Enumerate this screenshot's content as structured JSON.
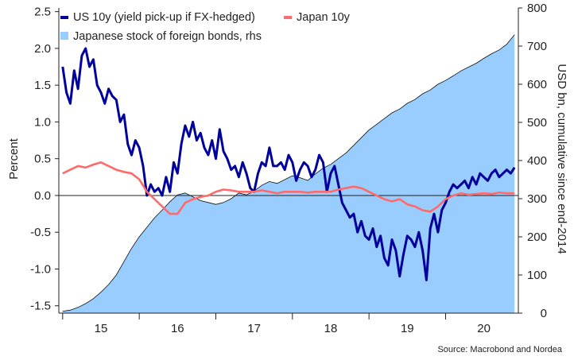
{
  "chart_data": {
    "type": "line",
    "title": "",
    "source": "Source: Macrobond and Nordea",
    "ylabel_left": "Percent",
    "ylabel_right": "USD bn, cumulative since end-2014",
    "ylim_left": [
      -1.6,
      2.55
    ],
    "ylim_right": [
      0,
      800
    ],
    "yticks_left": [
      "-1.5",
      "-1.0",
      "-0.5",
      "0.0",
      "0.5",
      "1.0",
      "1.5",
      "2.0",
      "2.5"
    ],
    "yticks_right": [
      "0",
      "100",
      "200",
      "300",
      "400",
      "500",
      "600",
      "700",
      "800"
    ],
    "x_categories": [
      "15",
      "16",
      "17",
      "18",
      "19",
      "20"
    ],
    "xlim": [
      2014.95,
      2020.95
    ],
    "legend": {
      "placement": "top-left"
    },
    "grid": false,
    "series": [
      {
        "name": "Japanese stock of foreign bonds, rhs",
        "axis": "right",
        "kind": "area",
        "color": "#99ccff",
        "x": [
          2015.0,
          2015.1,
          2015.2,
          2015.3,
          2015.4,
          2015.5,
          2015.6,
          2015.7,
          2015.8,
          2015.9,
          2016.0,
          2016.1,
          2016.2,
          2016.3,
          2016.4,
          2016.5,
          2016.6,
          2016.7,
          2016.8,
          2016.9,
          2017.0,
          2017.1,
          2017.2,
          2017.3,
          2017.4,
          2017.5,
          2017.6,
          2017.7,
          2017.8,
          2017.9,
          2018.0,
          2018.1,
          2018.2,
          2018.3,
          2018.4,
          2018.5,
          2018.6,
          2018.7,
          2018.8,
          2018.9,
          2019.0,
          2019.1,
          2019.2,
          2019.3,
          2019.4,
          2019.5,
          2019.6,
          2019.7,
          2019.8,
          2019.9,
          2020.0,
          2020.1,
          2020.2,
          2020.3,
          2020.4,
          2020.5,
          2020.6,
          2020.7,
          2020.8,
          2020.9
        ],
        "values": [
          5,
          8,
          15,
          25,
          38,
          55,
          75,
          100,
          135,
          170,
          200,
          225,
          250,
          270,
          292,
          310,
          315,
          305,
          295,
          290,
          285,
          290,
          300,
          315,
          310,
          320,
          335,
          345,
          340,
          350,
          360,
          355,
          348,
          365,
          380,
          390,
          405,
          420,
          440,
          460,
          480,
          495,
          510,
          525,
          535,
          550,
          560,
          575,
          585,
          600,
          610,
          622,
          635,
          645,
          655,
          668,
          680,
          690,
          705,
          730
        ]
      },
      {
        "name": "US 10y (yield pick-up if FX-hedged)",
        "axis": "left",
        "kind": "line",
        "color": "#00009b",
        "x": [
          2015.0,
          2015.05,
          2015.1,
          2015.15,
          2015.2,
          2015.25,
          2015.3,
          2015.35,
          2015.4,
          2015.45,
          2015.5,
          2015.55,
          2015.6,
          2015.65,
          2015.7,
          2015.75,
          2015.8,
          2015.85,
          2015.9,
          2015.95,
          2016.0,
          2016.05,
          2016.1,
          2016.15,
          2016.2,
          2016.25,
          2016.3,
          2016.35,
          2016.4,
          2016.45,
          2016.5,
          2016.55,
          2016.6,
          2016.65,
          2016.7,
          2016.75,
          2016.8,
          2016.85,
          2016.9,
          2016.95,
          2017.0,
          2017.05,
          2017.1,
          2017.15,
          2017.2,
          2017.25,
          2017.3,
          2017.35,
          2017.4,
          2017.45,
          2017.5,
          2017.55,
          2017.6,
          2017.65,
          2017.7,
          2017.75,
          2017.8,
          2017.85,
          2017.9,
          2017.95,
          2018.0,
          2018.05,
          2018.1,
          2018.15,
          2018.2,
          2018.25,
          2018.3,
          2018.35,
          2018.4,
          2018.45,
          2018.5,
          2018.55,
          2018.6,
          2018.65,
          2018.7,
          2018.75,
          2018.8,
          2018.85,
          2018.9,
          2018.95,
          2019.0,
          2019.05,
          2019.1,
          2019.15,
          2019.2,
          2019.25,
          2019.3,
          2019.35,
          2019.4,
          2019.45,
          2019.5,
          2019.55,
          2019.6,
          2019.65,
          2019.7,
          2019.75,
          2019.8,
          2019.85,
          2019.9,
          2019.95,
          2020.0,
          2020.05,
          2020.1,
          2020.15,
          2020.2,
          2020.25,
          2020.3,
          2020.35,
          2020.4,
          2020.45,
          2020.5,
          2020.55,
          2020.6,
          2020.65,
          2020.7,
          2020.75,
          2020.8,
          2020.85,
          2020.9
        ],
        "values": [
          1.75,
          1.4,
          1.25,
          1.7,
          1.45,
          1.9,
          2.0,
          1.75,
          1.85,
          1.5,
          1.4,
          1.25,
          1.45,
          1.35,
          1.3,
          1.0,
          1.1,
          0.7,
          0.55,
          0.75,
          0.65,
          0.4,
          0.0,
          0.15,
          0.05,
          0.1,
          0.0,
          0.25,
          0.05,
          0.45,
          0.3,
          0.7,
          0.95,
          0.8,
          1.0,
          0.75,
          0.85,
          0.65,
          0.55,
          0.75,
          0.5,
          0.9,
          0.6,
          0.5,
          0.35,
          0.4,
          0.25,
          0.45,
          0.3,
          0.1,
          0.05,
          0.3,
          0.45,
          0.4,
          0.65,
          0.4,
          0.4,
          0.45,
          0.35,
          0.55,
          0.45,
          0.2,
          0.35,
          0.45,
          0.4,
          0.25,
          0.35,
          0.55,
          0.45,
          0.05,
          0.3,
          0.4,
          0.15,
          -0.1,
          -0.2,
          -0.3,
          -0.25,
          -0.5,
          -0.35,
          -0.55,
          -0.6,
          -0.45,
          -0.7,
          -0.55,
          -0.85,
          -0.95,
          -0.6,
          -0.75,
          -1.1,
          -0.8,
          -0.55,
          -0.6,
          -0.7,
          -0.5,
          -0.75,
          -1.15,
          -0.45,
          -0.25,
          -0.5,
          -0.2,
          -0.1,
          0.05,
          0.15,
          0.1,
          0.15,
          0.2,
          0.1,
          0.25,
          0.15,
          0.3,
          0.25,
          0.2,
          0.3,
          0.35,
          0.25,
          0.3,
          0.35,
          0.3,
          0.38
        ]
      },
      {
        "name": "Japan 10y",
        "axis": "left",
        "kind": "line",
        "color": "#ff6b6b",
        "x": [
          2015.0,
          2015.1,
          2015.2,
          2015.3,
          2015.4,
          2015.5,
          2015.6,
          2015.7,
          2015.8,
          2015.9,
          2016.0,
          2016.1,
          2016.2,
          2016.3,
          2016.4,
          2016.5,
          2016.6,
          2016.7,
          2016.8,
          2016.9,
          2017.0,
          2017.1,
          2017.2,
          2017.3,
          2017.4,
          2017.5,
          2017.6,
          2017.7,
          2017.8,
          2017.9,
          2018.0,
          2018.1,
          2018.2,
          2018.3,
          2018.4,
          2018.5,
          2018.6,
          2018.7,
          2018.8,
          2018.9,
          2019.0,
          2019.1,
          2019.2,
          2019.3,
          2019.4,
          2019.5,
          2019.6,
          2019.7,
          2019.8,
          2019.9,
          2020.0,
          2020.1,
          2020.2,
          2020.3,
          2020.4,
          2020.5,
          2020.6,
          2020.7,
          2020.8,
          2020.9
        ],
        "values": [
          0.3,
          0.35,
          0.4,
          0.38,
          0.42,
          0.45,
          0.4,
          0.35,
          0.32,
          0.3,
          0.22,
          0.05,
          -0.05,
          -0.15,
          -0.25,
          -0.25,
          -0.1,
          -0.05,
          -0.02,
          0.0,
          0.05,
          0.08,
          0.07,
          0.05,
          0.05,
          0.05,
          0.07,
          0.05,
          0.03,
          0.05,
          0.05,
          0.05,
          0.04,
          0.05,
          0.05,
          0.05,
          0.08,
          0.1,
          0.12,
          0.1,
          0.05,
          0.0,
          -0.05,
          -0.08,
          -0.05,
          -0.12,
          -0.15,
          -0.2,
          -0.22,
          -0.15,
          -0.05,
          0.0,
          0.03,
          0.01,
          0.02,
          0.03,
          0.02,
          0.04,
          0.03,
          0.03
        ]
      }
    ]
  }
}
